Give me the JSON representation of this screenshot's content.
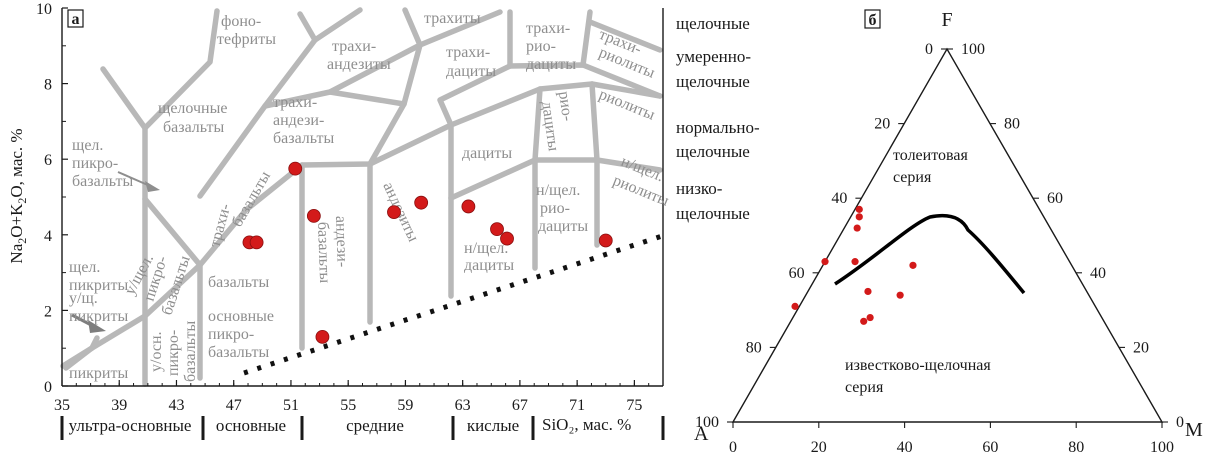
{
  "colors": {
    "boundary": "#b8b8b8",
    "point": "#d31a1a",
    "field_text": "#8e8e8e",
    "axis": "#1a1a1a"
  },
  "panel_a": {
    "label": "а",
    "ylabel_parts": [
      "Na",
      "2",
      "O+K",
      "2",
      "O, мас. %"
    ],
    "xlabel": "SiO₂, мас. %",
    "x_ticks": [
      "35",
      "39",
      "43",
      "47",
      "51",
      "55",
      "59",
      "63",
      "67",
      "71",
      "75"
    ],
    "y_ticks": [
      "0",
      "2",
      "4",
      "6",
      "8",
      "10"
    ],
    "groups": [
      "ультра-основные",
      "основные",
      "средние",
      "кислые"
    ],
    "alkalinity": [
      "щелочные",
      "умеренно-",
      "щелочные",
      "нормально-",
      "щелочные",
      "низко-",
      "щелочные"
    ],
    "fields": {
      "fonotefrity": [
        "фоно-",
        "тефриты"
      ],
      "trahity": [
        "трахиты"
      ],
      "trahiandezity": [
        "трахи-",
        "андезиты"
      ],
      "trahidacity": [
        "трахи-",
        "дациты"
      ],
      "trahiriodacity": [
        "трахи-",
        "рио-",
        "дациты"
      ],
      "trahiriolity": [
        "трахи-",
        "риолиты"
      ],
      "shch_bazalty": [
        "щелочные",
        "базальты"
      ],
      "trahiandezibazalty": [
        "трахи-",
        "андези-",
        "базальты"
      ],
      "riodacity": [
        "рио-",
        "дациты"
      ],
      "riolity": [
        "риолиты"
      ],
      "dacity": [
        "дациты"
      ],
      "shch_pikrobazalty": [
        "щел.",
        "пикро-",
        "базальты"
      ],
      "trahibazalty": [
        "трахи-",
        "базальты"
      ],
      "andezibazalty": [
        "андези-",
        "базальты"
      ],
      "andezity": [
        "андезиты"
      ],
      "nshch_dacity": [
        "н/щел.",
        "дациты"
      ],
      "nshch_riodacity": [
        "н/щел.",
        "рио-",
        "дациты"
      ],
      "nshch_riolity": [
        "н/щел.",
        "риолиты"
      ],
      "ushch_pikrobazalty": [
        "у/щел.",
        "пикро-",
        "базальты"
      ],
      "shch_pikrity": [
        "щел.",
        "пикриты"
      ],
      "ushch_pikrity": [
        "у/щ.",
        "пикриты"
      ],
      "bazalty": [
        "базальты"
      ],
      "osn_pikrobazalty": [
        "основные",
        "пикро-",
        "базальты"
      ],
      "uosn_pikrobazalty": [
        "у/осн.",
        "пикро-",
        "базальты"
      ],
      "pikrity": [
        "пикриты"
      ]
    }
  },
  "panel_b": {
    "label": "б",
    "vertex_top": "F",
    "vertex_left": "A",
    "vertex_right": "M",
    "bottom_ticks": [
      "0",
      "20",
      "40",
      "60",
      "80",
      "100"
    ],
    "left_ticks": [
      "100",
      "80",
      "60",
      "40",
      "20",
      "0"
    ],
    "right_ticks": [
      "100",
      "80",
      "60",
      "40",
      "20",
      "0"
    ],
    "region_upper": [
      "толеитовая",
      "серия"
    ],
    "region_lower": [
      "известково-щелочная",
      "серия"
    ]
  },
  "chart_data": [
    {
      "type": "scatter",
      "title": "а",
      "xlabel": "SiO2, мас. %",
      "ylabel": "Na2O+K2O, мас. %",
      "xlim": [
        35,
        77
      ],
      "ylim": [
        0,
        10
      ],
      "grid": false,
      "series": [
        {
          "x": [
            48.1,
            48.6,
            51.3,
            52.6,
            53.2,
            58.2,
            60.1,
            63.4,
            65.4,
            66.1,
            73.0
          ],
          "y": [
            3.8,
            3.8,
            5.75,
            4.5,
            1.3,
            4.6,
            4.85,
            4.75,
            4.15,
            3.9,
            3.85
          ]
        }
      ]
    },
    {
      "type": "scatter",
      "title": "б",
      "xlabel": "A",
      "ylabel": "F",
      "grid": false,
      "series": [
        {
          "x": [
            45,
            50,
            51,
            56,
            70,
            44,
            37,
            54,
            42,
            43,
            57
          ],
          "y": [
            52,
            43,
            35,
            27,
            31,
            34,
            42,
            28,
            57,
            55,
            43
          ]
        }
      ]
    }
  ]
}
